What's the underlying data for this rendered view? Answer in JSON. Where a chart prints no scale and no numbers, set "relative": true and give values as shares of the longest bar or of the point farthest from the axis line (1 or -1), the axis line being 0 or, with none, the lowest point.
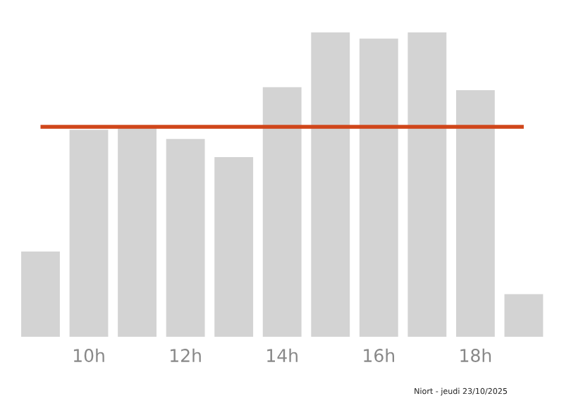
{
  "chart_data": {
    "type": "bar",
    "relative": true,
    "categories": [
      null,
      "10h",
      null,
      "12h",
      null,
      "14h",
      null,
      "16h",
      null,
      "18h",
      null
    ],
    "values": [
      0.28,
      0.68,
      0.69,
      0.65,
      0.59,
      0.82,
      1,
      0.98,
      1.0,
      0.81,
      0.14
    ],
    "color": "#d3d3d3",
    "ref_lines": [
      {
        "axis": "y",
        "value": 0.69,
        "color": "#d0461a"
      }
    ],
    "grid": false,
    "legend": false,
    "annotations": [
      "Niort - jeudi 23/10/2025"
    ]
  }
}
